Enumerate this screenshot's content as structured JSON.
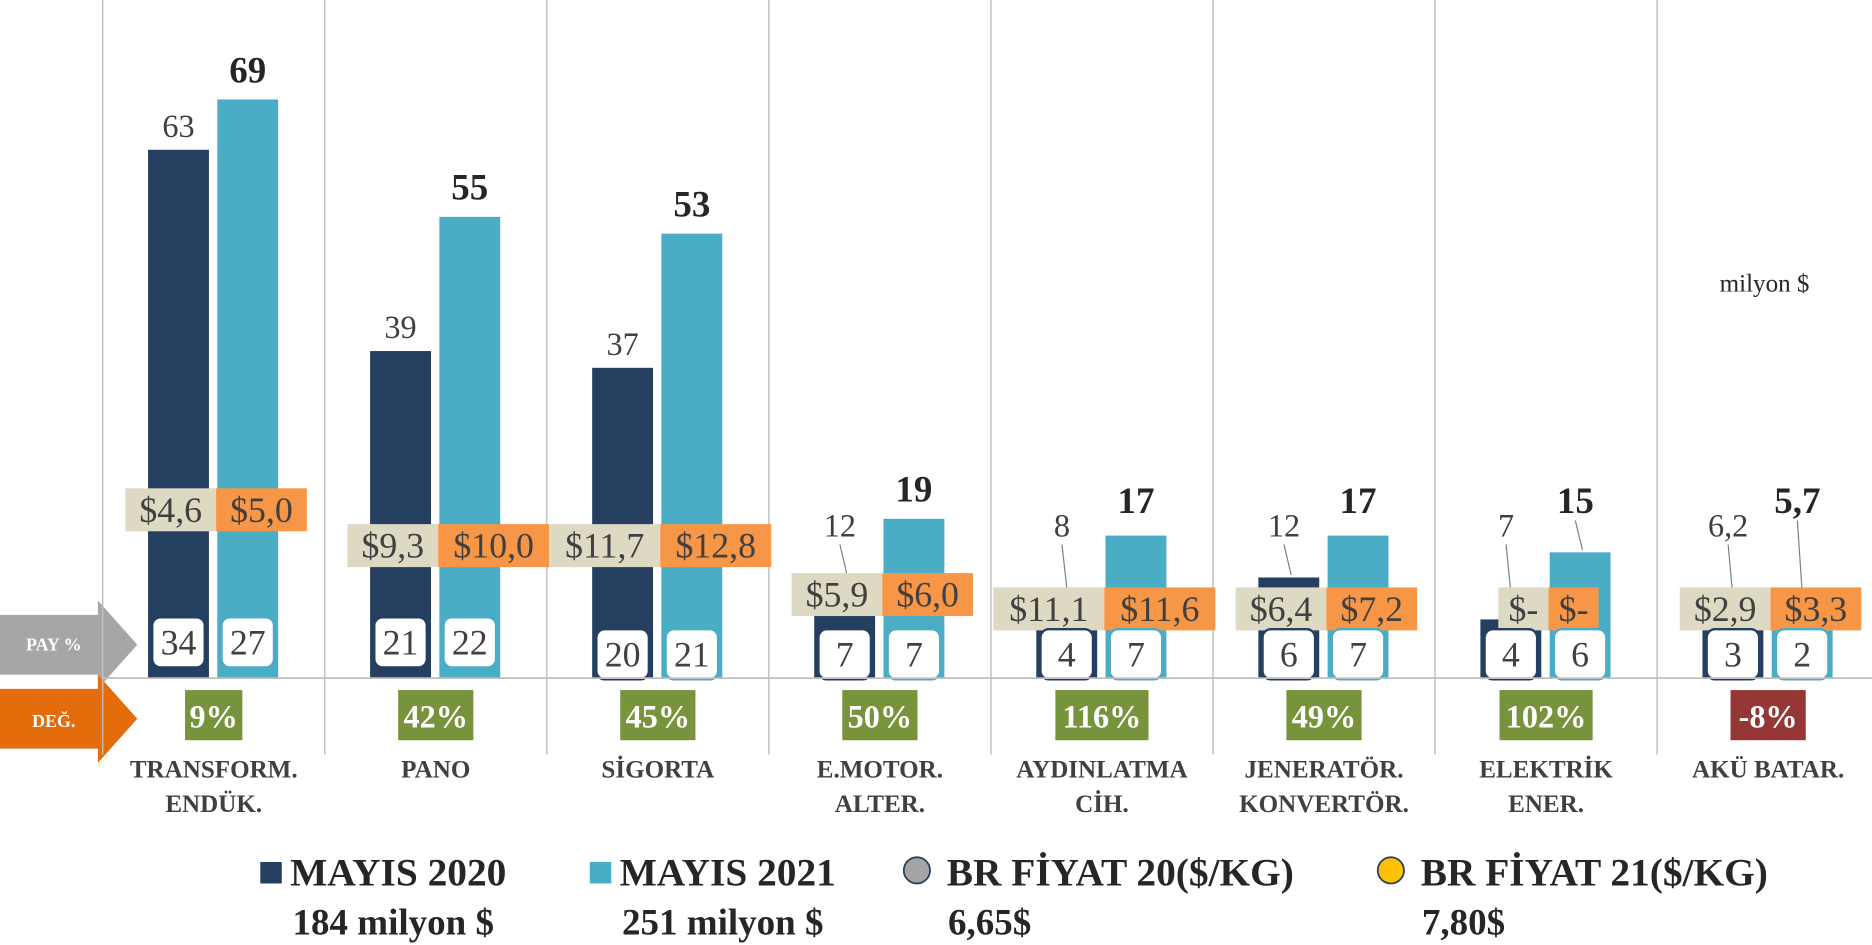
{
  "chart_data": {
    "type": "bar",
    "categories": [
      [
        "TRANSFORM.",
        "ENDÜK."
      ],
      [
        "PANO"
      ],
      [
        "SİGORTA"
      ],
      [
        "E.MOTOR.",
        "ALTER."
      ],
      [
        "AYDINLATMA",
        "CİH."
      ],
      [
        "JENERATÖR.",
        "KONVERTÖR."
      ],
      [
        "ELEKTRİK",
        "ENER."
      ],
      [
        "AKÜ BATAR."
      ]
    ],
    "ylim": [
      0,
      80
    ],
    "unit_note": "milyon $",
    "series": [
      {
        "name": "MAYIS 2020",
        "color": "#243f60",
        "total": 184,
        "total_label": "184 milyon $",
        "values": [
          63,
          39,
          37,
          12,
          8,
          12,
          7,
          6.2
        ],
        "value_labels": [
          "63",
          "39",
          "37",
          "12",
          "8",
          "12",
          "7",
          "6,2"
        ],
        "share": [
          34,
          21,
          20,
          7,
          4,
          6,
          4,
          3
        ]
      },
      {
        "name": "MAYIS 2021",
        "color": "#4bacc6",
        "total": 251,
        "total_label": "251 milyon $",
        "values": [
          69,
          55,
          53,
          19,
          17,
          17,
          15,
          5.7
        ],
        "value_labels": [
          "69",
          "55",
          "53",
          "19",
          "17",
          "17",
          "15",
          "5,7"
        ],
        "share": [
          27,
          22,
          21,
          7,
          7,
          7,
          6,
          2
        ]
      }
    ],
    "share_title": "PAY %",
    "change_title": "DEĞ.",
    "change": [
      9,
      42,
      45,
      50,
      116,
      49,
      102,
      -8
    ],
    "change_labels": [
      "9%",
      "42%",
      "45%",
      "50%",
      "116%",
      "49%",
      "102%",
      "-8%"
    ],
    "price_series": [
      {
        "name": "BR FİYAT 20($/KG)",
        "color": "#a5a5a5",
        "box_color": "#ddd9c3",
        "average": 6.65,
        "average_label": "6,65$",
        "values": [
          4.6,
          9.3,
          11.7,
          5.9,
          11.1,
          6.4,
          null,
          2.9
        ],
        "value_labels": [
          "$4,6",
          "$9,3",
          "$11,7",
          "$5,9",
          "$11,1",
          "$6,4",
          "$-",
          "$2,9"
        ]
      },
      {
        "name": "BR FİYAT 21($/KG)",
        "color": "#ffc000",
        "box_color": "#f79646",
        "average": 7.8,
        "average_label": "7,80$",
        "values": [
          5.0,
          10.0,
          12.8,
          6.0,
          11.6,
          7.2,
          null,
          3.3
        ],
        "value_labels": [
          "$5,0",
          "$10,0",
          "$12,8",
          "$6,0",
          "$11,6",
          "$7,2",
          "$-",
          "$3,3"
        ]
      }
    ]
  }
}
